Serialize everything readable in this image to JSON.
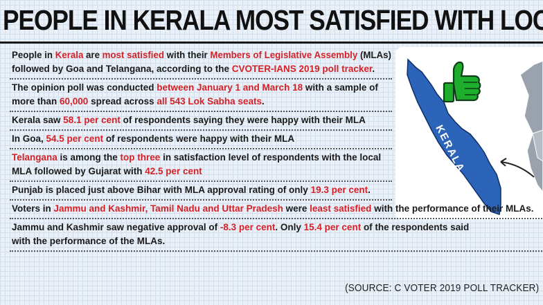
{
  "headline": "PEOPLE IN KERALA MOST SATISFIED WITH LOC",
  "facts": [
    [
      [
        {
          "t": "People in "
        },
        {
          "t": "Kerala",
          "h": true
        },
        {
          "t": " are "
        },
        {
          "t": "most satisfied",
          "h": true
        },
        {
          "t": " with their "
        },
        {
          "t": "Members of Legislative Assembly",
          "h": true
        },
        {
          "t": " (MLAs)"
        }
      ],
      [
        {
          "t": "followed by Goa and Telangana, according to the "
        },
        {
          "t": "CVOTER-IANS 2019 poll tracker",
          "h": true
        },
        {
          "t": "."
        }
      ]
    ],
    [
      [
        {
          "t": "The opinion poll was conducted "
        },
        {
          "t": "between January 1 and March 18",
          "h": true
        },
        {
          "t": " with a sample of"
        }
      ],
      [
        {
          "t": "more than "
        },
        {
          "t": "60,000",
          "h": true
        },
        {
          "t": " spread across "
        },
        {
          "t": "all 543 Lok Sabha seats",
          "h": true
        },
        {
          "t": "."
        }
      ]
    ],
    [
      [
        {
          "t": "Kerala saw "
        },
        {
          "t": "58.1 per cent",
          "h": true
        },
        {
          "t": " of respondents saying they were happy with their MLA"
        }
      ]
    ],
    [
      [
        {
          "t": "In Goa, "
        },
        {
          "t": "54.5 per cent",
          "h": true
        },
        {
          "t": " of respondents were happy with their MLA"
        }
      ]
    ],
    [
      [
        {
          "t": "Telangana",
          "h": true
        },
        {
          "t": " is among the "
        },
        {
          "t": "top three",
          "h": true
        },
        {
          "t": " in satisfaction level of respondents with the local"
        }
      ],
      [
        {
          "t": "MLA followed by Gujarat with "
        },
        {
          "t": "42.5 per cent",
          "h": true
        }
      ]
    ],
    [
      [
        {
          "t": "Punjab is placed just above Bihar with MLA approval rating of only "
        },
        {
          "t": "19.3 per cent",
          "h": true
        },
        {
          "t": "."
        }
      ]
    ],
    [
      [
        {
          "t": "Voters in "
        },
        {
          "t": "Jammu and Kashmir, Tamil Nadu and Uttar Pradesh",
          "h": true
        },
        {
          "t": " were "
        },
        {
          "t": "least satisfied",
          "h": true
        },
        {
          "t": " with the performance of their MLAs."
        }
      ]
    ],
    [
      [
        {
          "t": "Jammu and Kashmir saw negative approval of "
        },
        {
          "t": "-8.3 per cent",
          "h": true
        },
        {
          "t": ". Only "
        },
        {
          "t": "15.4 per cent",
          "h": true
        },
        {
          "t": " of the respondents said"
        }
      ],
      [
        {
          "t": "with the performance of the MLAs."
        }
      ]
    ]
  ],
  "map": {
    "state_label": "KERALA",
    "kerala_color": "#2b64b8",
    "thumb_color": "#1fad2e"
  },
  "source": "(SOURCE: C VOTER 2019 POLL TRACKER)"
}
